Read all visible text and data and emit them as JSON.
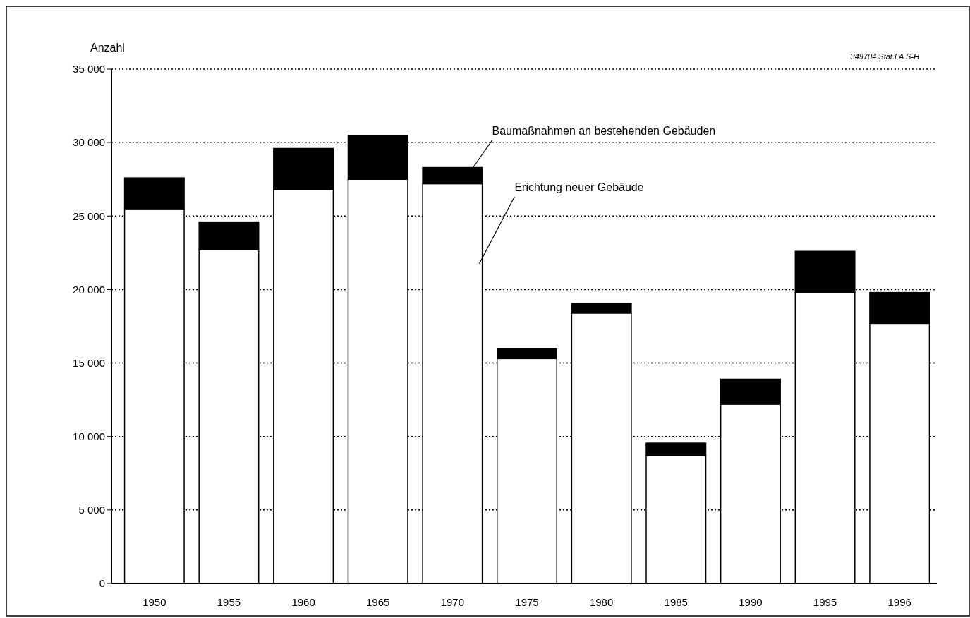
{
  "chart_data": {
    "type": "bar",
    "stacked": true,
    "ylabel": "Anzahl",
    "categories": [
      "1950",
      "1955",
      "1960",
      "1965",
      "1970",
      "1975",
      "1980",
      "1985",
      "1990",
      "1995",
      "1996"
    ],
    "series": [
      {
        "name": "Erichtung neuer Gebäude",
        "color": "#ffffff",
        "values": [
          25500,
          22700,
          26800,
          27500,
          27200,
          15300,
          18400,
          8700,
          12200,
          19800,
          17700
        ]
      },
      {
        "name": "Baumaßnahmen an bestehenden Gebäuden",
        "color": "#000000",
        "values": [
          2100,
          1900,
          2800,
          3000,
          1100,
          700,
          650,
          850,
          1700,
          2800,
          2100
        ]
      }
    ],
    "ylim": [
      0,
      35000
    ],
    "yticks": [
      {
        "value": 0,
        "label": "0"
      },
      {
        "value": 5000,
        "label": "5 000"
      },
      {
        "value": 10000,
        "label": "10 000"
      },
      {
        "value": 15000,
        "label": "15 000"
      },
      {
        "value": 20000,
        "label": "20 000"
      },
      {
        "value": 25000,
        "label": "25 000"
      },
      {
        "value": 30000,
        "label": "30 000"
      },
      {
        "value": 35000,
        "label": "35 000"
      }
    ],
    "grid": "y",
    "line_style": "dotted",
    "legend": false,
    "annotations": [
      "349704 Stat.LA S-H"
    ]
  }
}
